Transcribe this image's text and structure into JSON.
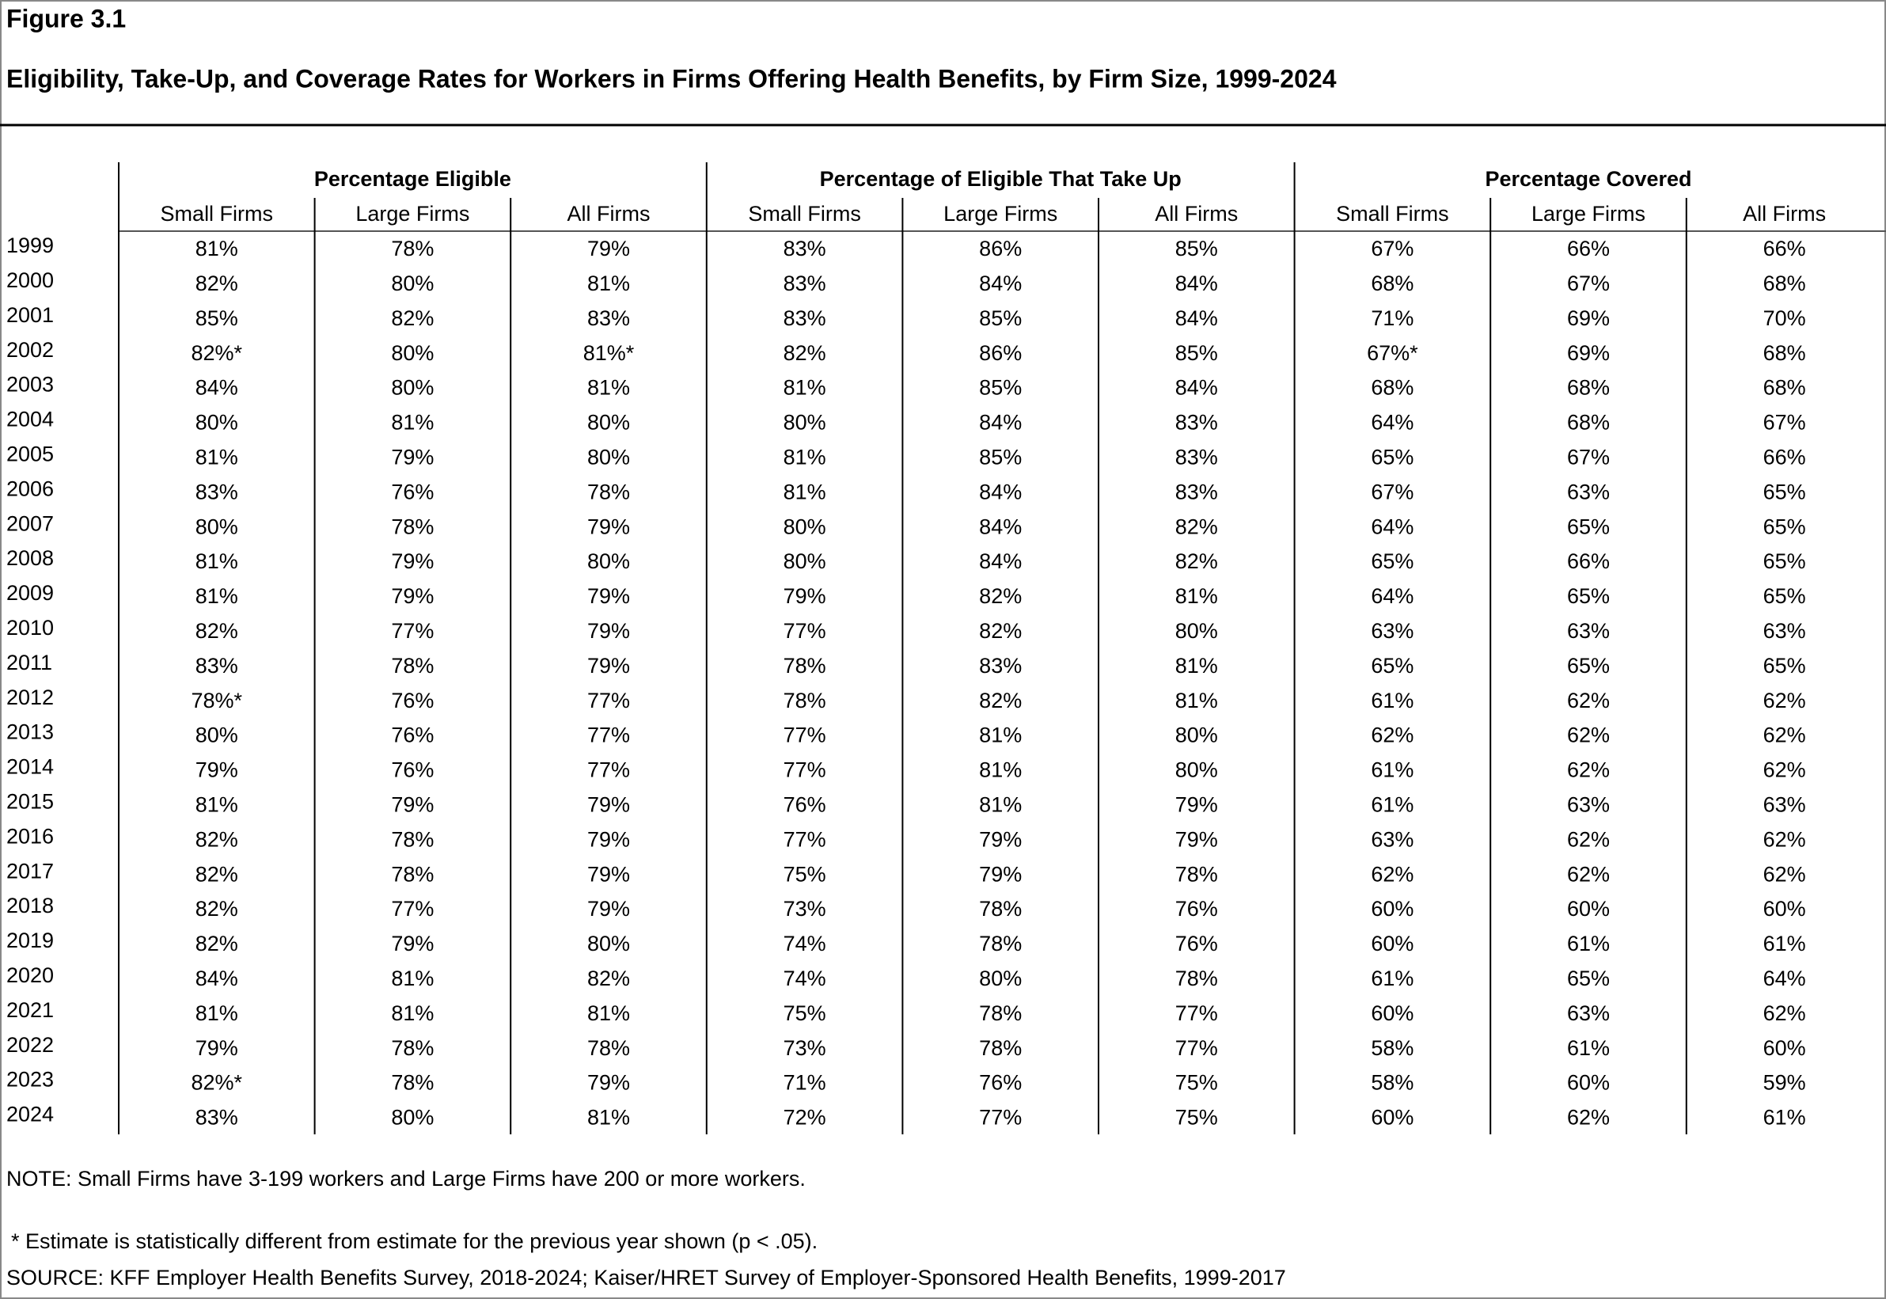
{
  "header": {
    "figure": "Figure 3.1",
    "title": "Eligibility, Take-Up, and Coverage Rates for Workers in Firms Offering Health Benefits, by Firm Size, 1999-2024"
  },
  "table": {
    "groups": [
      "Percentage Eligible",
      "Percentage of Eligible That Take Up",
      "Percentage Covered"
    ],
    "columns": [
      "Small Firms",
      "Large Firms",
      "All Firms",
      "Small Firms",
      "Large Firms",
      "All Firms",
      "Small Firms",
      "Large Firms",
      "All Firms"
    ],
    "rows": [
      [
        "1999",
        "81%",
        "78%",
        "79%",
        "83%",
        "86%",
        "85%",
        "67%",
        "66%",
        "66%"
      ],
      [
        "2000",
        "82%",
        "80%",
        "81%",
        "83%",
        "84%",
        "84%",
        "68%",
        "67%",
        "68%"
      ],
      [
        "2001",
        "85%",
        "82%",
        "83%",
        "83%",
        "85%",
        "84%",
        "71%",
        "69%",
        "70%"
      ],
      [
        "2002",
        "82%*",
        "80%",
        "81%*",
        "82%",
        "86%",
        "85%",
        "67%*",
        "69%",
        "68%"
      ],
      [
        "2003",
        "84%",
        "80%",
        "81%",
        "81%",
        "85%",
        "84%",
        "68%",
        "68%",
        "68%"
      ],
      [
        "2004",
        "80%",
        "81%",
        "80%",
        "80%",
        "84%",
        "83%",
        "64%",
        "68%",
        "67%"
      ],
      [
        "2005",
        "81%",
        "79%",
        "80%",
        "81%",
        "85%",
        "83%",
        "65%",
        "67%",
        "66%"
      ],
      [
        "2006",
        "83%",
        "76%",
        "78%",
        "81%",
        "84%",
        "83%",
        "67%",
        "63%",
        "65%"
      ],
      [
        "2007",
        "80%",
        "78%",
        "79%",
        "80%",
        "84%",
        "82%",
        "64%",
        "65%",
        "65%"
      ],
      [
        "2008",
        "81%",
        "79%",
        "80%",
        "80%",
        "84%",
        "82%",
        "65%",
        "66%",
        "65%"
      ],
      [
        "2009",
        "81%",
        "79%",
        "79%",
        "79%",
        "82%",
        "81%",
        "64%",
        "65%",
        "65%"
      ],
      [
        "2010",
        "82%",
        "77%",
        "79%",
        "77%",
        "82%",
        "80%",
        "63%",
        "63%",
        "63%"
      ],
      [
        "2011",
        "83%",
        "78%",
        "79%",
        "78%",
        "83%",
        "81%",
        "65%",
        "65%",
        "65%"
      ],
      [
        "2012",
        "78%*",
        "76%",
        "77%",
        "78%",
        "82%",
        "81%",
        "61%",
        "62%",
        "62%"
      ],
      [
        "2013",
        "80%",
        "76%",
        "77%",
        "77%",
        "81%",
        "80%",
        "62%",
        "62%",
        "62%"
      ],
      [
        "2014",
        "79%",
        "76%",
        "77%",
        "77%",
        "81%",
        "80%",
        "61%",
        "62%",
        "62%"
      ],
      [
        "2015",
        "81%",
        "79%",
        "79%",
        "76%",
        "81%",
        "79%",
        "61%",
        "63%",
        "63%"
      ],
      [
        "2016",
        "82%",
        "78%",
        "79%",
        "77%",
        "79%",
        "79%",
        "63%",
        "62%",
        "62%"
      ],
      [
        "2017",
        "82%",
        "78%",
        "79%",
        "75%",
        "79%",
        "78%",
        "62%",
        "62%",
        "62%"
      ],
      [
        "2018",
        "82%",
        "77%",
        "79%",
        "73%",
        "78%",
        "76%",
        "60%",
        "60%",
        "60%"
      ],
      [
        "2019",
        "82%",
        "79%",
        "80%",
        "74%",
        "78%",
        "76%",
        "60%",
        "61%",
        "61%"
      ],
      [
        "2020",
        "84%",
        "81%",
        "82%",
        "74%",
        "80%",
        "78%",
        "61%",
        "65%",
        "64%"
      ],
      [
        "2021",
        "81%",
        "81%",
        "81%",
        "75%",
        "78%",
        "77%",
        "60%",
        "63%",
        "62%"
      ],
      [
        "2022",
        "79%",
        "78%",
        "78%",
        "73%",
        "78%",
        "77%",
        "58%",
        "61%",
        "60%"
      ],
      [
        "2023",
        "82%*",
        "78%",
        "79%",
        "71%",
        "76%",
        "75%",
        "58%",
        "60%",
        "59%"
      ],
      [
        "2024",
        "83%",
        "80%",
        "81%",
        "72%",
        "77%",
        "75%",
        "60%",
        "62%",
        "61%"
      ]
    ]
  },
  "notes": [
    "NOTE: Small Firms have 3-199 workers and Large Firms have 200 or more workers.",
    "* Estimate is statistically different from estimate for the previous year shown (p < .05).",
    "SOURCE: KFF Employer Health Benefits Survey, 2018-2024; Kaiser/HRET Survey of Employer-Sponsored Health Benefits, 1999-2017"
  ]
}
